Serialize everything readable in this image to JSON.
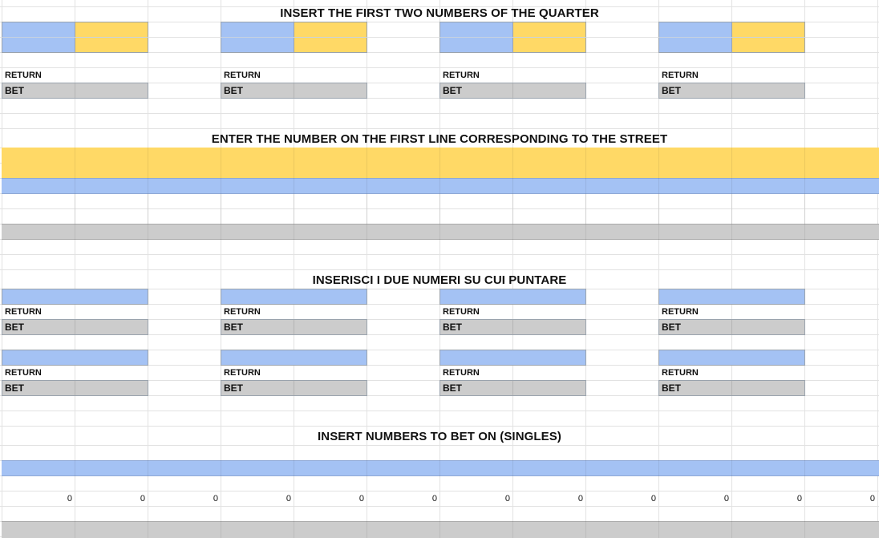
{
  "titles": {
    "quarter": "INSERT THE FIRST TWO NUMBERS OF THE QUARTER",
    "street": "ENTER THE NUMBER ON THE FIRST LINE CORRESPONDING TO THE STREET",
    "split": "INSERISCI I DUE NUMERI SU CUI PUNTARE",
    "singles": "INSERT NUMBERS TO BET ON (SINGLES)"
  },
  "labels": {
    "return": "RETURN",
    "bet": "BET"
  },
  "singles": {
    "values": [
      "0",
      "0",
      "0",
      "0",
      "0",
      "0",
      "0",
      "0",
      "0",
      "0",
      "0",
      "0"
    ]
  },
  "colors": {
    "blue": "#a4c2f4",
    "yellow": "#ffd966",
    "gray": "#cccccc",
    "grid": "#e2e2e2"
  }
}
